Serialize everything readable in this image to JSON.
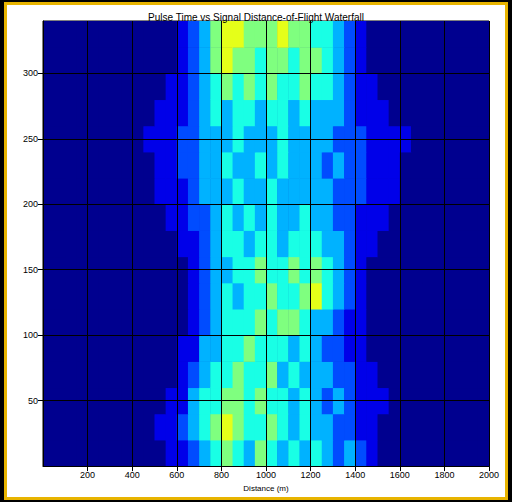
{
  "chart_data": {
    "type": "heatmap",
    "title": "Pulse Time vs Signal Distance-of-Flight Waterfall",
    "xlabel": "Distance (m)",
    "xlim": [
      0,
      2000
    ],
    "xticks": [
      200,
      400,
      600,
      800,
      1000,
      1200,
      1400,
      1600,
      1800,
      2000
    ],
    "ylim": [
      0,
      340
    ],
    "yticks": [
      50,
      100,
      150,
      200,
      250,
      300
    ],
    "grid": true,
    "x_edges": [
      0,
      50,
      100,
      150,
      200,
      250,
      300,
      350,
      400,
      450,
      500,
      550,
      600,
      650,
      700,
      750,
      800,
      850,
      900,
      950,
      1000,
      1050,
      1100,
      1150,
      1200,
      1250,
      1300,
      1350,
      1400,
      1450,
      1500,
      1550,
      1600,
      1650,
      1700,
      1750,
      1800,
      1850,
      1900,
      1950,
      2000
    ],
    "y_edges": [
      0,
      20,
      40,
      60,
      80,
      100,
      120,
      140,
      160,
      180,
      200,
      220,
      240,
      260,
      280,
      300,
      320,
      340
    ],
    "color_range": [
      0,
      1
    ],
    "cells": [
      [
        0,
        0,
        0,
        0,
        0,
        0,
        0,
        0,
        0,
        0,
        0,
        0.1,
        0.1,
        0.2,
        0.3,
        0.4,
        0.5,
        0.4,
        0.3,
        0.5,
        0.4,
        0.3,
        0.4,
        0.3,
        0.4,
        0.3,
        0.2,
        0.3,
        0.2,
        0.1,
        0,
        0,
        0,
        0,
        0,
        0,
        0,
        0,
        0,
        0
      ],
      [
        0,
        0,
        0,
        0,
        0,
        0,
        0,
        0,
        0,
        0,
        0.1,
        0.1,
        0.2,
        0.3,
        0.4,
        0.5,
        0.6,
        0.5,
        0.4,
        0.4,
        0.5,
        0.4,
        0.3,
        0.4,
        0.3,
        0.3,
        0.2,
        0.2,
        0.1,
        0.1,
        0,
        0,
        0,
        0,
        0,
        0,
        0,
        0,
        0,
        0
      ],
      [
        0,
        0,
        0,
        0,
        0,
        0,
        0,
        0,
        0,
        0,
        0,
        0.1,
        0.1,
        0.3,
        0.4,
        0.4,
        0.5,
        0.5,
        0.4,
        0.5,
        0.4,
        0.4,
        0.3,
        0.4,
        0.3,
        0.2,
        0.3,
        0.2,
        0.1,
        0.1,
        0.1,
        0,
        0,
        0,
        0,
        0,
        0,
        0,
        0,
        0
      ],
      [
        0,
        0,
        0,
        0,
        0,
        0,
        0,
        0,
        0,
        0,
        0,
        0,
        0.1,
        0.2,
        0.3,
        0.4,
        0.4,
        0.5,
        0.4,
        0.4,
        0.5,
        0.3,
        0.4,
        0.3,
        0.3,
        0.3,
        0.2,
        0.2,
        0.1,
        0.1,
        0,
        0,
        0,
        0,
        0,
        0,
        0,
        0,
        0,
        0
      ],
      [
        0,
        0,
        0,
        0,
        0,
        0,
        0,
        0,
        0,
        0,
        0,
        0,
        0.1,
        0.1,
        0.3,
        0.3,
        0.4,
        0.4,
        0.5,
        0.4,
        0.4,
        0.4,
        0.3,
        0.4,
        0.3,
        0.2,
        0.2,
        0.1,
        0.1,
        0,
        0,
        0,
        0,
        0,
        0,
        0,
        0,
        0,
        0,
        0
      ],
      [
        0,
        0,
        0,
        0,
        0,
        0,
        0,
        0,
        0,
        0,
        0,
        0,
        0,
        0.1,
        0.2,
        0.3,
        0.4,
        0.4,
        0.4,
        0.5,
        0.4,
        0.5,
        0.5,
        0.4,
        0.3,
        0.3,
        0.2,
        0.1,
        0.1,
        0,
        0,
        0,
        0,
        0,
        0,
        0,
        0,
        0,
        0,
        0
      ],
      [
        0,
        0,
        0,
        0,
        0,
        0,
        0,
        0,
        0,
        0,
        0,
        0,
        0,
        0.1,
        0.2,
        0.3,
        0.4,
        0.3,
        0.4,
        0.4,
        0.5,
        0.4,
        0.4,
        0.5,
        0.6,
        0.4,
        0.3,
        0.2,
        0.1,
        0,
        0,
        0,
        0,
        0,
        0,
        0,
        0,
        0,
        0,
        0
      ],
      [
        0,
        0,
        0,
        0,
        0,
        0,
        0,
        0,
        0,
        0,
        0,
        0,
        0,
        0.1,
        0.2,
        0.3,
        0.3,
        0.4,
        0.4,
        0.5,
        0.4,
        0.4,
        0.5,
        0.4,
        0.5,
        0.4,
        0.3,
        0.2,
        0.1,
        0,
        0,
        0,
        0,
        0,
        0,
        0,
        0,
        0,
        0,
        0
      ],
      [
        0,
        0,
        0,
        0,
        0,
        0,
        0,
        0,
        0,
        0,
        0,
        0,
        0.1,
        0.1,
        0.2,
        0.3,
        0.4,
        0.4,
        0.3,
        0.4,
        0.4,
        0.3,
        0.4,
        0.4,
        0.4,
        0.3,
        0.3,
        0.2,
        0.1,
        0.1,
        0,
        0,
        0,
        0,
        0,
        0,
        0,
        0,
        0,
        0
      ],
      [
        0,
        0,
        0,
        0,
        0,
        0,
        0,
        0,
        0,
        0,
        0,
        0.1,
        0.1,
        0.2,
        0.2,
        0.3,
        0.4,
        0.3,
        0.4,
        0.3,
        0.4,
        0.3,
        0.3,
        0.4,
        0.3,
        0.3,
        0.2,
        0.2,
        0.1,
        0.1,
        0.1,
        0,
        0,
        0,
        0,
        0,
        0,
        0,
        0,
        0
      ],
      [
        0,
        0,
        0,
        0,
        0,
        0,
        0,
        0,
        0,
        0,
        0.1,
        0.1,
        0.1,
        0.2,
        0.3,
        0.3,
        0.3,
        0.4,
        0.3,
        0.3,
        0.4,
        0.3,
        0.3,
        0.3,
        0.3,
        0.3,
        0.2,
        0.2,
        0.2,
        0.1,
        0.1,
        0.1,
        0,
        0,
        0,
        0,
        0,
        0,
        0,
        0
      ],
      [
        0,
        0,
        0,
        0,
        0,
        0,
        0,
        0,
        0,
        0,
        0.1,
        0.1,
        0.2,
        0.2,
        0.3,
        0.3,
        0.4,
        0.3,
        0.3,
        0.4,
        0.3,
        0.4,
        0.3,
        0.3,
        0.3,
        0.2,
        0.3,
        0.2,
        0.2,
        0.1,
        0.1,
        0.1,
        0,
        0,
        0,
        0,
        0,
        0,
        0,
        0
      ],
      [
        0,
        0,
        0,
        0,
        0,
        0,
        0,
        0,
        0,
        0.1,
        0.1,
        0.1,
        0.2,
        0.2,
        0.3,
        0.3,
        0.3,
        0.4,
        0.3,
        0.3,
        0.3,
        0.4,
        0.3,
        0.3,
        0.3,
        0.3,
        0.2,
        0.2,
        0.2,
        0.1,
        0.1,
        0.1,
        0.1,
        0,
        0,
        0,
        0,
        0,
        0,
        0
      ],
      [
        0,
        0,
        0,
        0,
        0,
        0,
        0,
        0,
        0,
        0,
        0.1,
        0.1,
        0.1,
        0.2,
        0.3,
        0.4,
        0.3,
        0.4,
        0.4,
        0.3,
        0.4,
        0.4,
        0.3,
        0.4,
        0.3,
        0.3,
        0.3,
        0.2,
        0.1,
        0.1,
        0.1,
        0,
        0,
        0,
        0,
        0,
        0,
        0,
        0,
        0
      ],
      [
        0,
        0,
        0,
        0,
        0,
        0,
        0,
        0,
        0,
        0,
        0,
        0.1,
        0.1,
        0.2,
        0.3,
        0.4,
        0.5,
        0.4,
        0.5,
        0.4,
        0.5,
        0.4,
        0.4,
        0.5,
        0.4,
        0.4,
        0.3,
        0.2,
        0.1,
        0.1,
        0,
        0,
        0,
        0,
        0,
        0,
        0,
        0,
        0,
        0
      ],
      [
        0,
        0,
        0,
        0,
        0,
        0,
        0,
        0,
        0,
        0,
        0,
        0,
        0.1,
        0.2,
        0.3,
        0.5,
        0.6,
        0.5,
        0.5,
        0.4,
        0.5,
        0.5,
        0.4,
        0.5,
        0.5,
        0.4,
        0.3,
        0.2,
        0.1,
        0,
        0,
        0,
        0,
        0,
        0,
        0,
        0,
        0,
        0,
        0
      ],
      [
        0,
        0,
        0,
        0,
        0,
        0,
        0,
        0,
        0,
        0,
        0,
        0,
        0.1,
        0.2,
        0.3,
        0.5,
        0.6,
        0.6,
        0.5,
        0.5,
        0.5,
        0.6,
        0.5,
        0.5,
        0.4,
        0.4,
        0.3,
        0.2,
        0.1,
        0,
        0,
        0,
        0,
        0,
        0,
        0,
        0,
        0,
        0,
        0
      ]
    ]
  }
}
